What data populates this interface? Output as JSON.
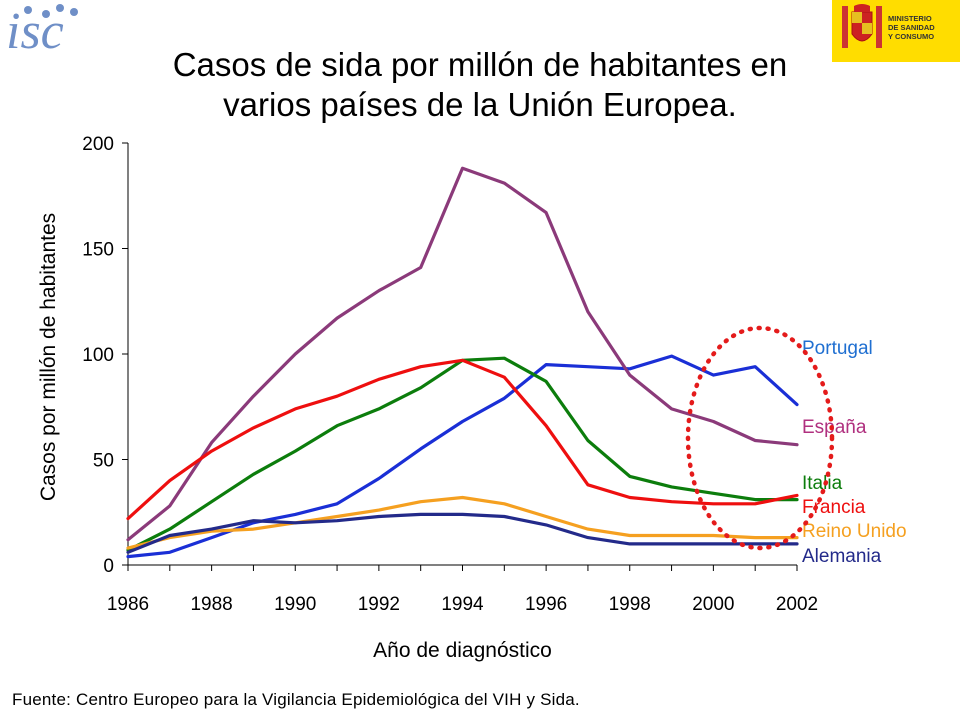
{
  "header": {
    "left_logo_text": "isc",
    "ministry_logo_text": "MINISTERIO\nDE SANIDAD\nY CONSUMO",
    "title_line1": "Casos de sida por millón de habitantes en",
    "title_line2": "varios países de la Unión Europea."
  },
  "footer": {
    "source": "Fuente: Centro Europeo para la Vigilancia Epidemiológica del VIH y Sida."
  },
  "chart_data": {
    "type": "line",
    "title": "Casos de sida por millón de habitantes en varios países de la Unión Europea.",
    "xlabel": "Año de diagnóstico",
    "ylabel": "Casos por millón de habitantes",
    "ylim": [
      0,
      200
    ],
    "xlim": [
      1986,
      2002
    ],
    "yticks": [
      0,
      50,
      100,
      150,
      200
    ],
    "xticks": [
      1986,
      1988,
      1990,
      1992,
      1994,
      1996,
      1998,
      2000,
      2002
    ],
    "grid": false,
    "legend": "inline labels at right end of each line",
    "x": [
      1986,
      1987,
      1988,
      1989,
      1990,
      1991,
      1992,
      1993,
      1994,
      1995,
      1996,
      1997,
      1998,
      1999,
      2000,
      2001,
      2002
    ],
    "series": [
      {
        "name": "Portugal",
        "color": "#1a2fd6",
        "label_color": "#1f6fd1",
        "values": [
          4,
          6,
          13,
          20,
          24,
          29,
          41,
          55,
          68,
          79,
          95,
          94,
          93,
          99,
          90,
          94,
          76
        ]
      },
      {
        "name": "España",
        "color": "#8b3a7a",
        "label_color": "#b0307f",
        "values": [
          12,
          28,
          58,
          80,
          100,
          117,
          130,
          141,
          188,
          181,
          167,
          120,
          90,
          74,
          68,
          59,
          57
        ]
      },
      {
        "name": "Italia",
        "color": "#0c7d0c",
        "label_color": "#0c7d0c",
        "values": [
          7,
          17,
          30,
          43,
          54,
          66,
          74,
          84,
          97,
          98,
          87,
          59,
          42,
          37,
          34,
          31,
          31
        ]
      },
      {
        "name": "Francia",
        "color": "#ee0f0f",
        "label_color": "#ee0f0f",
        "values": [
          22,
          40,
          54,
          65,
          74,
          80,
          88,
          94,
          97,
          89,
          66,
          38,
          32,
          30,
          29,
          29,
          33
        ]
      },
      {
        "name": "Reino Unido",
        "color": "#f5a020",
        "label_color": "#f5a020",
        "values": [
          8,
          13,
          16,
          17,
          20,
          23,
          26,
          30,
          32,
          29,
          23,
          17,
          14,
          14,
          14,
          13,
          13
        ]
      },
      {
        "name": "Alemania",
        "color": "#232a8a",
        "label_color": "#232a8a",
        "values": [
          6,
          14,
          17,
          21,
          20,
          21,
          23,
          24,
          24,
          23,
          19,
          13,
          10,
          10,
          10,
          10,
          10
        ]
      }
    ],
    "annotation": "red dotted ellipse highlighting 2000-2002",
    "highlight_color": "#e41b1b"
  }
}
